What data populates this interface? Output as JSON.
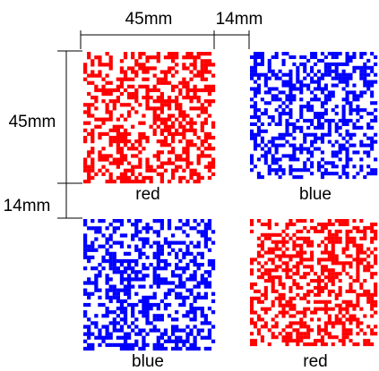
{
  "dimensions": {
    "width_label": "45mm",
    "gap_width_label": "14mm",
    "height_label": "45mm",
    "gap_height_label": "14mm"
  },
  "patterns": [
    {
      "label": "red",
      "color": "#ff0000"
    },
    {
      "label": "blue",
      "color": "#0000ff"
    },
    {
      "label": "blue",
      "color": "#0000ff"
    },
    {
      "label": "red",
      "color": "#ff0000"
    }
  ]
}
